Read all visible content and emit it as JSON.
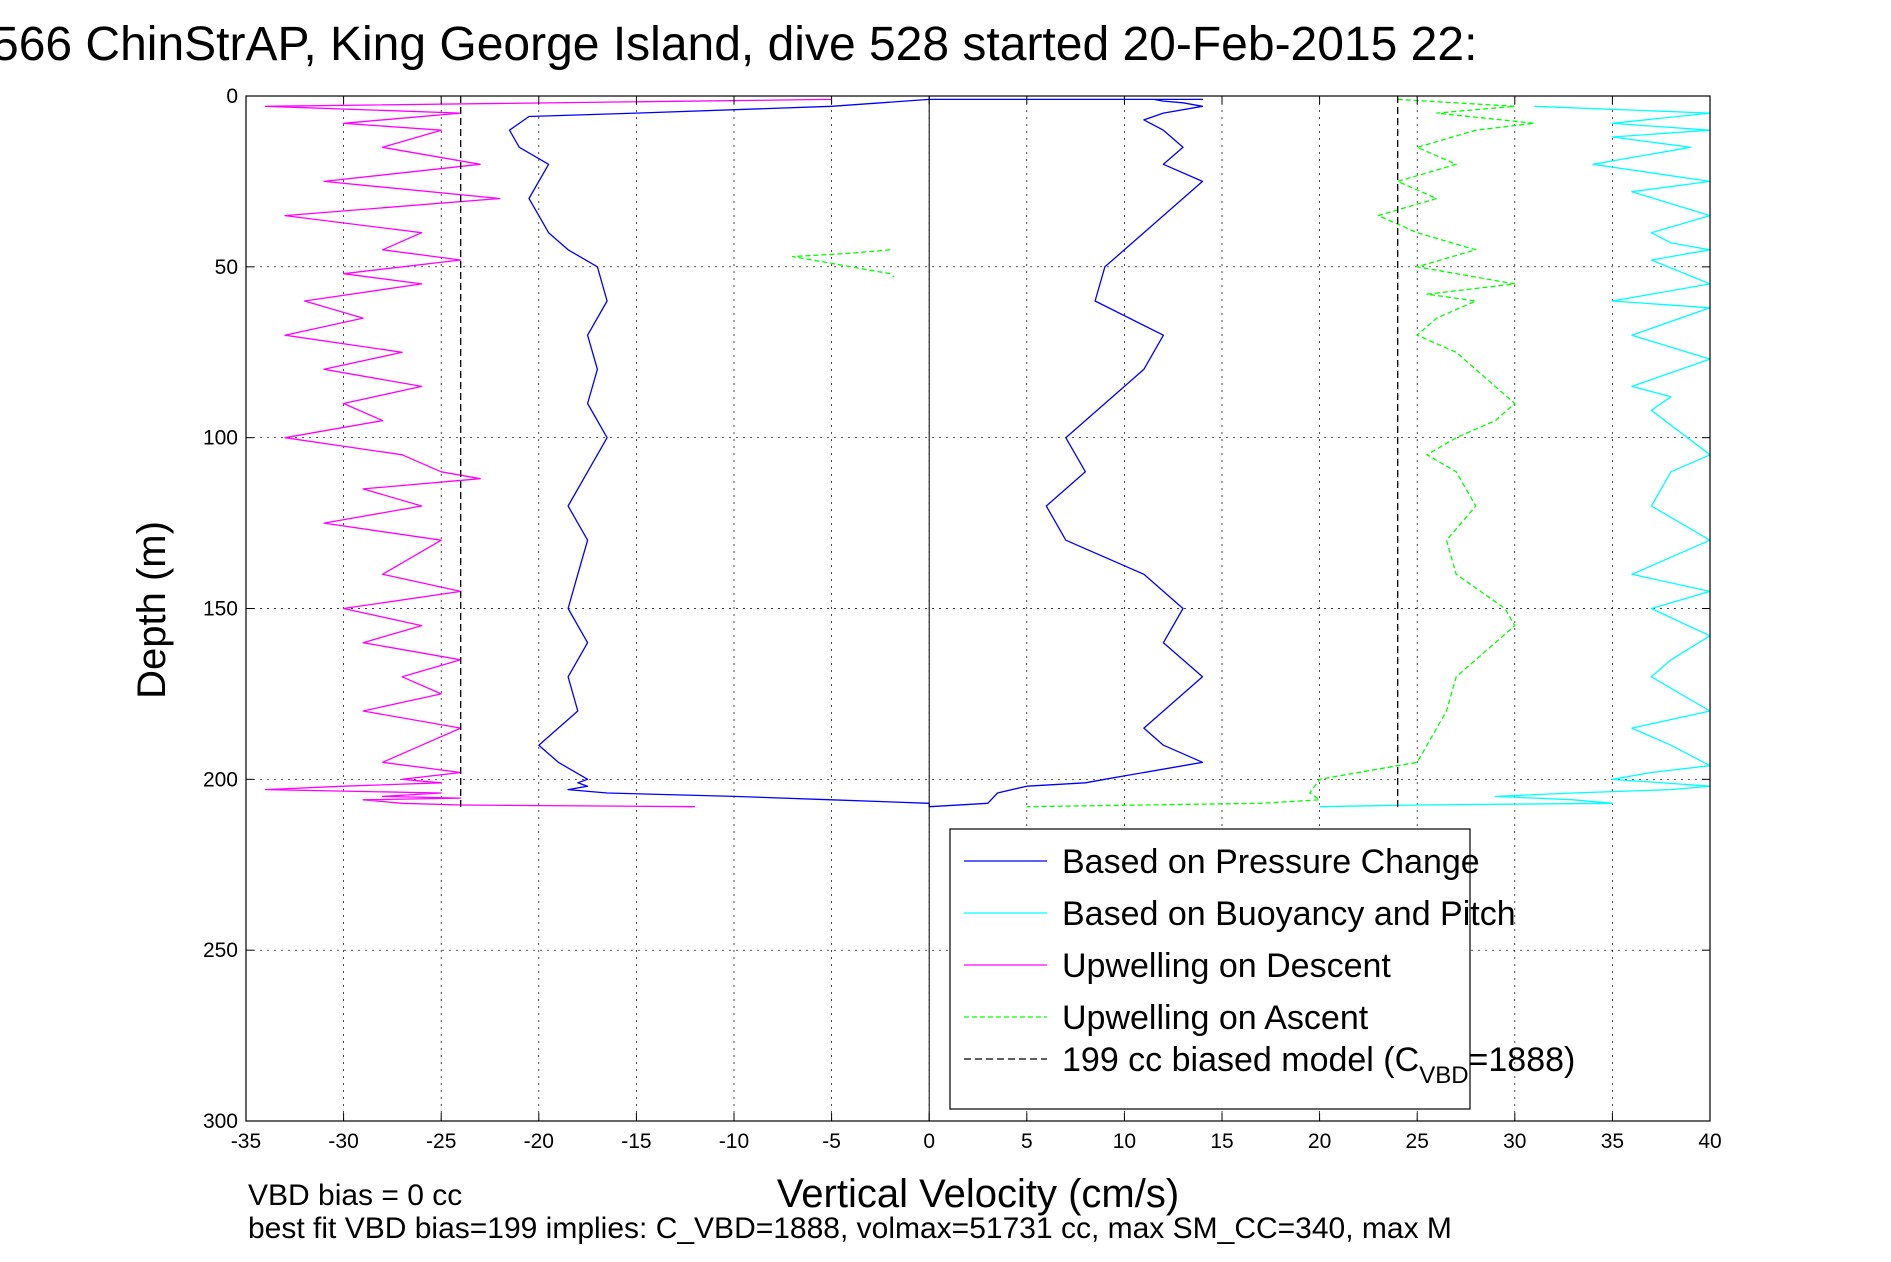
{
  "title": "566 ChinStrAP, King George Island, dive 528 started 20-Feb-2015 22:",
  "chart_data": {
    "type": "line",
    "xlabel": "Vertical Velocity (cm/s)",
    "ylabel": "Depth (m)",
    "xlim": [
      -35,
      40
    ],
    "ylim": [
      0,
      300
    ],
    "y_reversed": true,
    "grid": true,
    "xticks": [
      "-35",
      "-30",
      "-25",
      "-20",
      "-15",
      "-10",
      "-5",
      "0",
      "5",
      "10",
      "15",
      "20",
      "25",
      "30",
      "35",
      "40"
    ],
    "yticks": [
      "0",
      "50",
      "100",
      "150",
      "200",
      "250",
      "300"
    ],
    "legend_position": "lower-right",
    "series": [
      {
        "name": "Based on Pressure Change",
        "color": "#0000ff",
        "style": "solid",
        "x": [
          0,
          -5,
          -15,
          -20.5,
          -21.5,
          -21,
          -19.5,
          -20.5,
          -20,
          -19.5,
          -18.5,
          -17,
          -16.5,
          -17.5,
          -17,
          -17.5,
          -16.5,
          -17.5,
          -18.5,
          -17.5,
          -18,
          -18.5,
          -17.5,
          -18.5,
          -18,
          -20,
          -19,
          -17.5,
          -18,
          -17.5,
          -18.5,
          -16.5,
          -10,
          -5,
          0,
          0,
          3,
          3.5,
          5,
          8,
          9,
          10,
          14,
          12,
          11,
          14,
          12,
          13,
          11,
          7,
          6,
          8,
          7,
          9,
          11,
          12,
          8.5,
          9,
          10,
          12,
          14,
          12,
          13,
          12,
          11,
          12,
          14,
          13,
          12,
          11.5,
          13,
          14,
          12,
          11,
          10,
          5,
          2.5,
          0
        ],
        "y": [
          1,
          3,
          5,
          6,
          10,
          15,
          20,
          30,
          35,
          40,
          45,
          50,
          60,
          70,
          80,
          90,
          100,
          110,
          120,
          130,
          140,
          150,
          160,
          170,
          180,
          190,
          195,
          200,
          201,
          202,
          203,
          204,
          205,
          206,
          207,
          208,
          207,
          204,
          202,
          201,
          200,
          199,
          195,
          190,
          185,
          170,
          160,
          150,
          140,
          130,
          120,
          110,
          100,
          90,
          80,
          70,
          60,
          50,
          45,
          35,
          25,
          20,
          15,
          10,
          7,
          5,
          3,
          2,
          1.5,
          1,
          1,
          1,
          1,
          1,
          1,
          1,
          1,
          1
        ]
      },
      {
        "name": "Based on Buoyancy and Pitch",
        "color": "#00ffff",
        "style": "solid",
        "x": [
          31,
          40,
          35,
          40,
          35,
          39,
          34,
          40,
          36,
          40,
          37,
          38,
          40,
          37,
          40,
          35,
          40,
          36,
          40,
          36,
          38,
          37,
          40,
          38,
          37,
          40,
          36,
          40,
          37,
          40,
          38,
          37,
          40,
          36,
          38,
          40,
          37,
          35,
          40,
          38,
          33,
          29,
          33,
          35,
          25,
          20
        ],
        "y": [
          3,
          5,
          8,
          10,
          12,
          15,
          20,
          25,
          28,
          35,
          40,
          43,
          45,
          48,
          55,
          60,
          62,
          70,
          77,
          85,
          88,
          92,
          105,
          110,
          120,
          130,
          140,
          145,
          150,
          158,
          165,
          170,
          180,
          185,
          190,
          196,
          198,
          200,
          202,
          203,
          204,
          205,
          206,
          207,
          207.5,
          208
        ]
      },
      {
        "name": "Upwelling on Descent",
        "color": "#ff00ff",
        "style": "solid",
        "x": [
          -5,
          -34,
          -24,
          -30,
          -25,
          -28,
          -23,
          -31,
          -22,
          -33,
          -26,
          -28,
          -24,
          -30,
          -26,
          -32,
          -29,
          -33,
          -27,
          -31,
          -26,
          -30,
          -28,
          -33,
          -27,
          -25,
          -23,
          -29,
          -26,
          -31,
          -25,
          -28,
          -24,
          -30,
          -26,
          -29,
          -24,
          -27,
          -25,
          -29,
          -24,
          -26,
          -28,
          -24,
          -27,
          -25,
          -30,
          -34,
          -25,
          -28,
          -24,
          -29,
          -27,
          -24,
          -12
        ],
        "y": [
          1,
          3,
          5,
          8,
          10,
          15,
          20,
          25,
          30,
          35,
          40,
          45,
          48,
          52,
          55,
          60,
          65,
          70,
          75,
          80,
          85,
          90,
          95,
          100,
          105,
          110,
          112,
          115,
          120,
          125,
          130,
          140,
          145,
          150,
          155,
          160,
          165,
          170,
          175,
          180,
          185,
          190,
          195,
          198,
          200,
          201,
          202,
          203,
          204,
          205,
          205.5,
          206,
          207,
          207.5,
          208
        ]
      },
      {
        "name": "Upwelling on Ascent",
        "color": "#00ff00",
        "style": "dashed",
        "x": [
          24,
          30,
          26,
          31,
          28,
          25,
          27,
          24,
          26,
          23,
          25,
          28,
          25,
          30,
          25.5,
          28,
          26,
          25,
          27,
          30,
          29,
          27,
          25.5,
          27,
          28,
          26.5,
          27,
          29.5,
          30,
          29,
          27,
          26.5,
          25,
          20,
          19.5,
          20,
          17,
          5
        ],
        "y": [
          1,
          3,
          5,
          8,
          10,
          15,
          20,
          25,
          30,
          35,
          40,
          45,
          50,
          55,
          58,
          60,
          65,
          70,
          75,
          90,
          95,
          100,
          105,
          110,
          120,
          130,
          140,
          150,
          155,
          160,
          170,
          180,
          195,
          200,
          204,
          206,
          207,
          208
        ]
      },
      {
        "name": "Upwelling on Ascent (segment)",
        "color": "#00ff00",
        "style": "dashed",
        "legend": false,
        "x": [
          -2,
          -4,
          -7,
          -5,
          -2,
          -1.8
        ],
        "y": [
          45,
          46,
          47,
          49,
          52,
          53
        ]
      },
      {
        "name": "199 cc biased model (C_VBD=1888)",
        "color": "#000000",
        "style": "dashed",
        "x": [
          -24,
          -24
        ],
        "y": [
          0,
          208
        ],
        "x2": [
          24,
          24
        ],
        "y2": [
          0,
          208
        ]
      }
    ],
    "legend": {
      "entries": [
        {
          "label": "Based on Pressure Change",
          "color": "#0000ff",
          "style": "solid"
        },
        {
          "label": "Based on Buoyancy and Pitch",
          "color": "#00ffff",
          "style": "solid"
        },
        {
          "label": "Upwelling on Descent",
          "color": "#ff00ff",
          "style": "solid"
        },
        {
          "label": "Upwelling on Ascent",
          "color": "#00ff00",
          "style": "dashed"
        },
        {
          "label": "199 cc biased model (C",
          "sub": "VBD",
          "suffix": "=1888)",
          "color": "#000000",
          "style": "dashed"
        }
      ]
    }
  },
  "notes": {
    "line1": "VBD bias = 0 cc",
    "line2": "best fit VBD bias=199 implies: C_VBD=1888, volmax=51731 cc, max SM_CC=340, max M"
  }
}
